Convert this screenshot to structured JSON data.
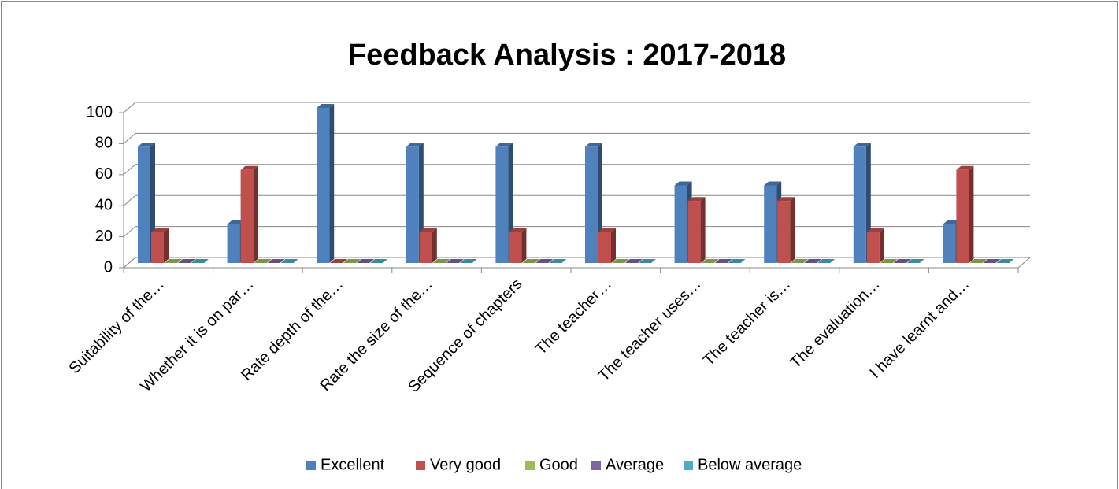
{
  "chart_data": {
    "type": "bar",
    "title": "Feedback Analysis : 2017-2018",
    "categories": [
      "Suitability of the…",
      "Whether it is on par…",
      "Rate depth of the…",
      "Rate the size of the…",
      "Sequence of chapters",
      "The teacher…",
      "The teacher uses…",
      "The teacher is…",
      "The evaluation…",
      "I have learnt and…"
    ],
    "series": [
      {
        "name": "Excellent",
        "color": "#4f81bd",
        "values": [
          75,
          25,
          100,
          75,
          75,
          75,
          50,
          50,
          75,
          25
        ]
      },
      {
        "name": "Very good",
        "color": "#c0504d",
        "values": [
          20,
          60,
          0,
          20,
          20,
          20,
          40,
          40,
          20,
          60
        ]
      },
      {
        "name": "Good",
        "color": "#9bbb59",
        "values": [
          0,
          0,
          0,
          0,
          0,
          0,
          0,
          0,
          0,
          0
        ]
      },
      {
        "name": "Average",
        "color": "#8064a2",
        "values": [
          0,
          0,
          0,
          0,
          0,
          0,
          0,
          0,
          0,
          0
        ]
      },
      {
        "name": "Below average",
        "color": "#4bacc6",
        "values": [
          0,
          0,
          0,
          0,
          0,
          0,
          0,
          0,
          0,
          0
        ]
      }
    ],
    "ylim": [
      0,
      100
    ],
    "yticks": [
      0,
      20,
      40,
      60,
      80,
      100
    ],
    "grid": true,
    "legend": "bottom"
  }
}
